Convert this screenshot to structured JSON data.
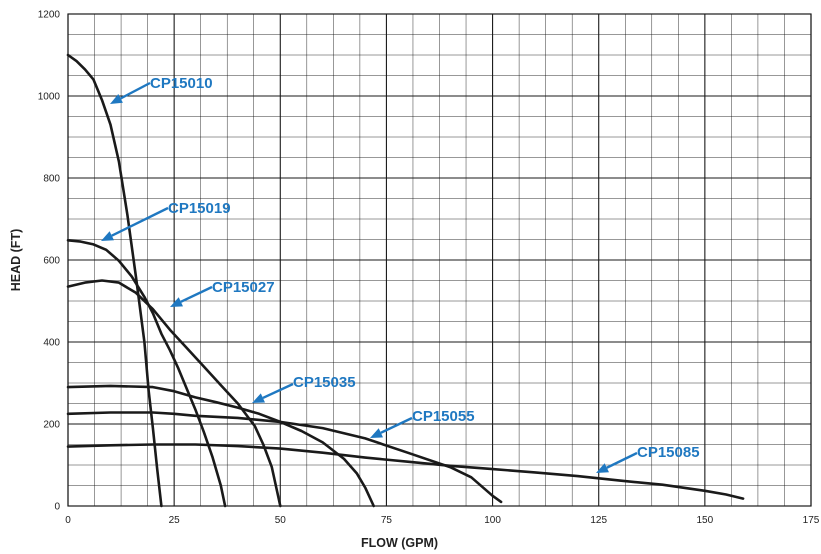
{
  "chart_data": {
    "type": "line",
    "xlabel": "FLOW (GPM)",
    "ylabel": "HEAD (FT)",
    "xlim": [
      0,
      175
    ],
    "ylim": [
      0,
      1200
    ],
    "x_ticks": [
      0,
      25,
      50,
      75,
      100,
      125,
      150,
      175
    ],
    "y_ticks": [
      0,
      200,
      400,
      600,
      800,
      1000,
      1200
    ],
    "x_tick_labels": [
      "0",
      "25",
      "50",
      "75",
      "100",
      "125",
      "150",
      "175"
    ],
    "y_tick_labels": [
      "0",
      "200",
      "400",
      "600",
      "800",
      "1000",
      "1200"
    ],
    "grid": true,
    "minor_grid_per_major": 4,
    "colors": {
      "curve": "#1a1a1a",
      "label": "#1f78c1",
      "grid": "#1a1a1a"
    },
    "series": [
      {
        "name": "CP15010",
        "points": [
          [
            0,
            1100
          ],
          [
            2,
            1085
          ],
          [
            4,
            1065
          ],
          [
            6,
            1040
          ],
          [
            8,
            990
          ],
          [
            10,
            930
          ],
          [
            12,
            840
          ],
          [
            14,
            710
          ],
          [
            16,
            560
          ],
          [
            18,
            400
          ],
          [
            19,
            280
          ],
          [
            20,
            190
          ],
          [
            21,
            90
          ],
          [
            22,
            0
          ]
        ]
      },
      {
        "name": "CP15019",
        "points": [
          [
            0,
            648
          ],
          [
            3,
            645
          ],
          [
            6,
            638
          ],
          [
            9,
            625
          ],
          [
            12,
            598
          ],
          [
            15,
            560
          ],
          [
            18,
            510
          ],
          [
            20,
            470
          ],
          [
            22,
            420
          ],
          [
            24,
            380
          ],
          [
            26,
            335
          ],
          [
            28,
            285
          ],
          [
            30,
            235
          ],
          [
            32,
            180
          ],
          [
            34,
            120
          ],
          [
            36,
            50
          ],
          [
            37,
            0
          ]
        ]
      },
      {
        "name": "CP15027",
        "points": [
          [
            0,
            535
          ],
          [
            4,
            545
          ],
          [
            8,
            550
          ],
          [
            12,
            545
          ],
          [
            16,
            520
          ],
          [
            20,
            480
          ],
          [
            24,
            430
          ],
          [
            28,
            385
          ],
          [
            32,
            340
          ],
          [
            36,
            295
          ],
          [
            40,
            250
          ],
          [
            44,
            195
          ],
          [
            46,
            150
          ],
          [
            48,
            95
          ],
          [
            50,
            0
          ]
        ]
      },
      {
        "name": "CP15035",
        "points": [
          [
            0,
            290
          ],
          [
            10,
            293
          ],
          [
            20,
            290
          ],
          [
            25,
            280
          ],
          [
            30,
            265
          ],
          [
            35,
            253
          ],
          [
            40,
            240
          ],
          [
            45,
            225
          ],
          [
            50,
            205
          ],
          [
            55,
            183
          ],
          [
            60,
            155
          ],
          [
            65,
            115
          ],
          [
            68,
            80
          ],
          [
            70,
            45
          ],
          [
            72,
            0
          ]
        ]
      },
      {
        "name": "CP15055",
        "points": [
          [
            0,
            225
          ],
          [
            10,
            228
          ],
          [
            20,
            228
          ],
          [
            25,
            225
          ],
          [
            30,
            220
          ],
          [
            40,
            215
          ],
          [
            50,
            205
          ],
          [
            60,
            190
          ],
          [
            70,
            165
          ],
          [
            80,
            130
          ],
          [
            90,
            95
          ],
          [
            95,
            70
          ],
          [
            100,
            25
          ],
          [
            102,
            10
          ]
        ]
      },
      {
        "name": "CP15085",
        "points": [
          [
            0,
            145
          ],
          [
            10,
            148
          ],
          [
            20,
            150
          ],
          [
            30,
            150
          ],
          [
            40,
            146
          ],
          [
            50,
            140
          ],
          [
            60,
            130
          ],
          [
            70,
            118
          ],
          [
            80,
            108
          ],
          [
            90,
            98
          ],
          [
            100,
            90
          ],
          [
            110,
            82
          ],
          [
            120,
            73
          ],
          [
            130,
            62
          ],
          [
            140,
            52
          ],
          [
            150,
            37
          ],
          [
            155,
            28
          ],
          [
            159,
            18
          ]
        ]
      }
    ],
    "annotations": [
      {
        "text": "CP15010",
        "series": "CP15010"
      },
      {
        "text": "CP15019",
        "series": "CP15019"
      },
      {
        "text": "CP15027",
        "series": "CP15027"
      },
      {
        "text": "CP15035",
        "series": "CP15035"
      },
      {
        "text": "CP15055",
        "series": "CP15055"
      },
      {
        "text": "CP15085",
        "series": "CP15085"
      }
    ]
  }
}
